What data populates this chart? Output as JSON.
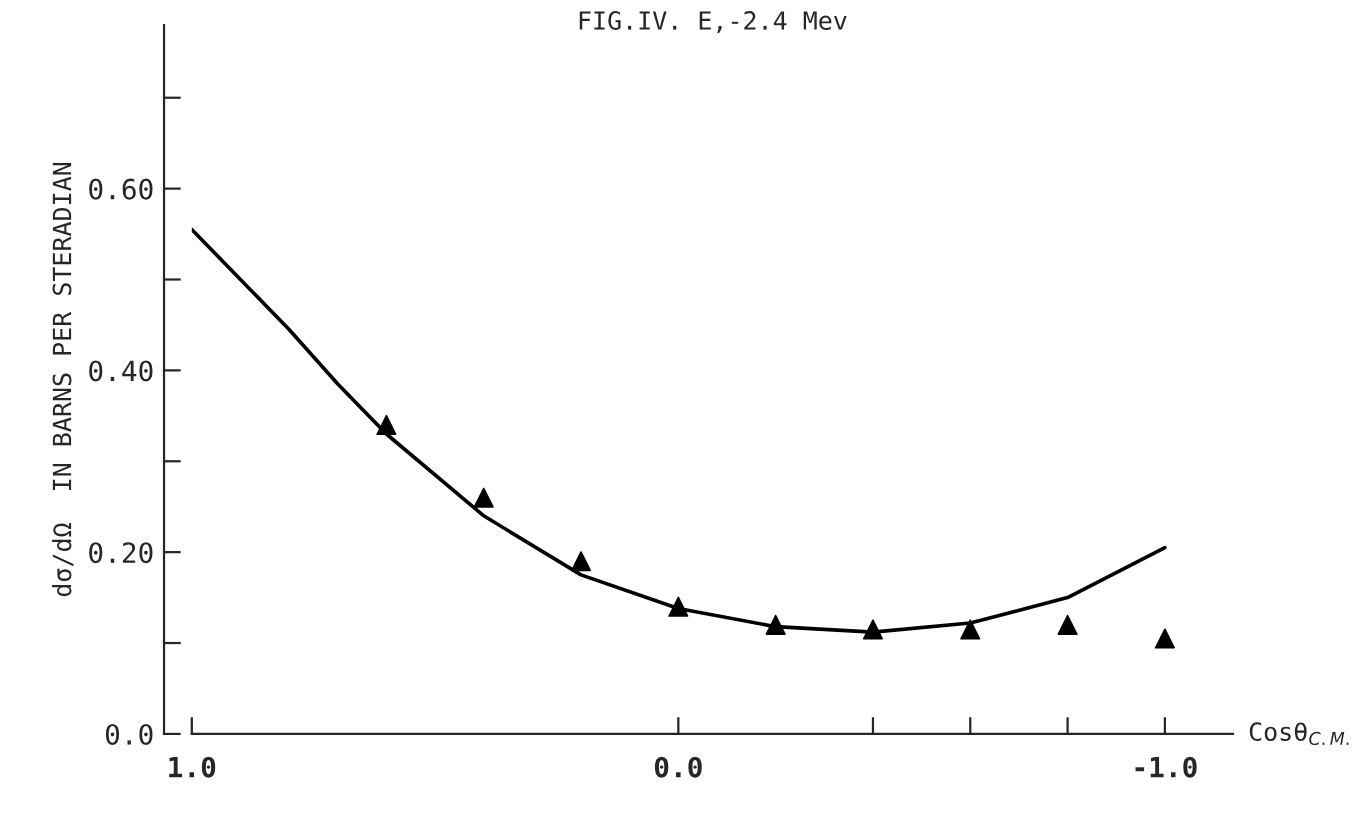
{
  "chart_data": {
    "type": "scatter",
    "title": "FIG.IV. E,-2.4 Mev",
    "xlabel": "Cosθ$_{C.M.}$",
    "ylabel": "dσ/dΩ  IN BARNS PER STERADIAN",
    "xlim": [
      1.0,
      -1.14
    ],
    "xticks": [
      {
        "value": 1.0,
        "label": "1.0"
      },
      {
        "value": 0.0,
        "label": "0.0"
      },
      {
        "value": -0.4,
        "label": null
      },
      {
        "value": -0.6,
        "label": null
      },
      {
        "value": -0.8,
        "label": null
      },
      {
        "value": -1.0,
        "label": "-1.0"
      }
    ],
    "ylim": [
      0,
      0.78
    ],
    "yticks": [
      {
        "value": 0.0,
        "label": "0.0"
      },
      {
        "value": 0.1,
        "label": null
      },
      {
        "value": 0.2,
        "label": "0.20"
      },
      {
        "value": 0.3,
        "label": null
      },
      {
        "value": 0.4,
        "label": "0.40"
      },
      {
        "value": 0.5,
        "label": null
      },
      {
        "value": 0.6,
        "label": "0.60"
      },
      {
        "value": 0.7,
        "label": null
      }
    ],
    "marker": "triangle",
    "grid": false,
    "series": [
      {
        "color": "#000000",
        "x": [
          0.6,
          0.4,
          0.2,
          0.0,
          -0.2,
          -0.4,
          -0.6,
          -0.8,
          -1.0
        ],
        "values": [
          0.34,
          0.26,
          0.19,
          0.14,
          0.12,
          0.115,
          0.115,
          0.12,
          0.105
        ]
      },
      {
        "type": "line",
        "color": "#000000",
        "marker": "none",
        "line_style": "solid",
        "x": [
          1.0,
          0.9,
          0.8,
          0.7,
          0.6,
          0.4,
          0.2,
          0.0,
          -0.2,
          -0.4,
          -0.6,
          -0.8,
          -1.0
        ],
        "values": [
          0.555,
          0.5,
          0.445,
          0.385,
          0.33,
          0.24,
          0.175,
          0.138,
          0.118,
          0.112,
          0.122,
          0.15,
          0.205
        ]
      }
    ]
  }
}
